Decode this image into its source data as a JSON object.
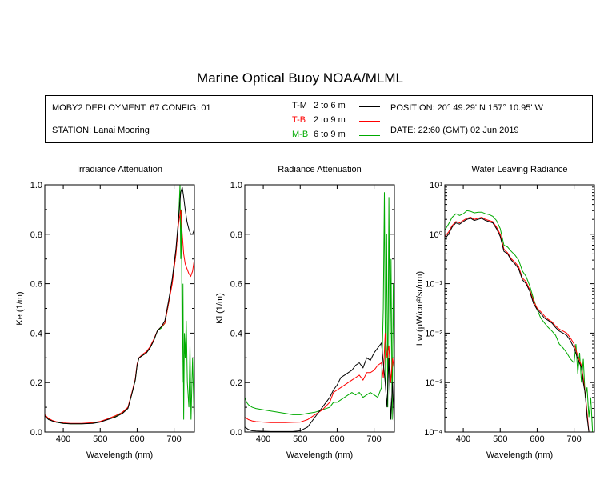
{
  "header": {
    "title": "Marine Optical Buoy NOAA/MLML",
    "deployment": "MOBY2 DEPLOYMENT: 67 CONFIG: 01",
    "station": "STATION: Lanai Mooring",
    "position": "POSITION: 20° 49.29' N   157° 10.95' W",
    "date": "DATE: 22:60 (GMT) 02 Jun 2019"
  },
  "legend": [
    {
      "name": "T-M",
      "range": "2 to 6  m",
      "color": "#000000"
    },
    {
      "name": "T-B",
      "range": "2 to 9  m",
      "color": "#ff0000"
    },
    {
      "name": "M-B",
      "range": "6 to 9  m",
      "color": "#00aa00"
    }
  ],
  "chart_data": [
    {
      "type": "line",
      "title": "Irradiance Attenuation",
      "xlabel": "Wavelength (nm)",
      "ylabel": "Ke  (1/m)",
      "xlim": [
        350,
        755
      ],
      "ylim": [
        0,
        1
      ],
      "xticks": [
        "400",
        "500",
        "600",
        "700"
      ],
      "yticks": [
        "0.0",
        "0.2",
        "0.4",
        "0.6",
        "0.8",
        "1.0"
      ],
      "series": [
        {
          "name": "T-M",
          "color": "#000000",
          "x": [
            350,
            360,
            370,
            380,
            400,
            420,
            450,
            480,
            500,
            520,
            540,
            560,
            575,
            585,
            595,
            600,
            605,
            615,
            625,
            635,
            645,
            655,
            665,
            675,
            685,
            695,
            705,
            712,
            718,
            722,
            726,
            730,
            735,
            740,
            745,
            750,
            755
          ],
          "y": [
            0.065,
            0.05,
            0.045,
            0.04,
            0.035,
            0.033,
            0.033,
            0.035,
            0.04,
            0.05,
            0.06,
            0.075,
            0.095,
            0.15,
            0.21,
            0.27,
            0.3,
            0.31,
            0.32,
            0.34,
            0.37,
            0.41,
            0.425,
            0.45,
            0.53,
            0.62,
            0.74,
            0.86,
            0.97,
            0.99,
            0.95,
            0.9,
            0.85,
            0.82,
            0.8,
            0.8,
            0.82
          ]
        },
        {
          "name": "T-B",
          "color": "#ff0000",
          "x": [
            350,
            360,
            370,
            380,
            400,
            420,
            450,
            480,
            500,
            520,
            540,
            560,
            575,
            585,
            595,
            600,
            605,
            615,
            625,
            635,
            645,
            655,
            665,
            675,
            685,
            695,
            705,
            712,
            718,
            722,
            726,
            730,
            735,
            740,
            745,
            750,
            755
          ],
          "y": [
            0.07,
            0.055,
            0.047,
            0.042,
            0.037,
            0.035,
            0.035,
            0.038,
            0.043,
            0.053,
            0.065,
            0.08,
            0.1,
            0.155,
            0.215,
            0.275,
            0.3,
            0.315,
            0.325,
            0.345,
            0.375,
            0.41,
            0.425,
            0.44,
            0.52,
            0.6,
            0.72,
            0.84,
            0.9,
            0.8,
            0.72,
            0.68,
            0.66,
            0.64,
            0.63,
            0.65,
            0.7
          ]
        },
        {
          "name": "M-B",
          "color": "#00aa00",
          "x": [
            350,
            355,
            360,
            365,
            370,
            380,
            400,
            420,
            450,
            480,
            500,
            520,
            540,
            560,
            575,
            585,
            595,
            600,
            605,
            615,
            625,
            635,
            645,
            655,
            665,
            675,
            685,
            695,
            705,
            712,
            716,
            718,
            720,
            722,
            724,
            726,
            728,
            730,
            733,
            736,
            740,
            743,
            746,
            750,
            755
          ],
          "y": [
            0.07,
            0.06,
            0.052,
            0.05,
            0.045,
            0.04,
            0.035,
            0.033,
            0.033,
            0.036,
            0.041,
            0.052,
            0.063,
            0.078,
            0.098,
            0.15,
            0.21,
            0.27,
            0.3,
            0.31,
            0.32,
            0.34,
            0.37,
            0.41,
            0.42,
            0.44,
            0.52,
            0.61,
            0.72,
            0.85,
            1.0,
            0.7,
            0.9,
            0.2,
            0.6,
            0.05,
            0.4,
            0.3,
            0.45,
            0.2,
            0.1,
            0.35,
            0.05,
            0.3,
            0.0
          ]
        }
      ]
    },
    {
      "type": "line",
      "title": "Radiance Attenuation",
      "xlabel": "Wavelength (nm)",
      "ylabel": "Kl  (1/m)",
      "xlim": [
        350,
        755
      ],
      "ylim": [
        0,
        1
      ],
      "xticks": [
        "400",
        "500",
        "600",
        "700"
      ],
      "yticks": [
        "0.0",
        "0.2",
        "0.4",
        "0.6",
        "0.8",
        "1.0"
      ],
      "series": [
        {
          "name": "T-M",
          "color": "#000000",
          "x": [
            350,
            360,
            370,
            380,
            400,
            420,
            440,
            460,
            480,
            500,
            520,
            540,
            560,
            580,
            590,
            600,
            610,
            620,
            630,
            640,
            650,
            660,
            670,
            680,
            690,
            700,
            710,
            720,
            725,
            730,
            735,
            740,
            745,
            750,
            755
          ],
          "y": [
            0.02,
            0.01,
            0.005,
            0.004,
            0.003,
            0.002,
            0.002,
            0.002,
            0.002,
            0.005,
            0.02,
            0.06,
            0.1,
            0.14,
            0.17,
            0.19,
            0.22,
            0.23,
            0.24,
            0.25,
            0.27,
            0.28,
            0.26,
            0.3,
            0.29,
            0.32,
            0.34,
            0.36,
            0.28,
            0.2,
            0.1,
            0.3,
            0.05,
            0.2,
            0.0
          ]
        },
        {
          "name": "T-B",
          "color": "#ff0000",
          "x": [
            350,
            360,
            370,
            380,
            400,
            420,
            440,
            460,
            480,
            500,
            520,
            540,
            560,
            580,
            590,
            600,
            610,
            620,
            630,
            640,
            650,
            660,
            670,
            680,
            690,
            700,
            710,
            720,
            725,
            730,
            735,
            740,
            745,
            750,
            755
          ],
          "y": [
            0.06,
            0.05,
            0.045,
            0.042,
            0.04,
            0.038,
            0.038,
            0.038,
            0.039,
            0.04,
            0.05,
            0.07,
            0.09,
            0.12,
            0.16,
            0.17,
            0.18,
            0.19,
            0.2,
            0.21,
            0.22,
            0.23,
            0.21,
            0.24,
            0.24,
            0.25,
            0.27,
            0.28,
            0.22,
            0.4,
            0.3,
            0.35,
            0.2,
            0.3,
            0.25
          ]
        },
        {
          "name": "M-B",
          "color": "#00aa00",
          "x": [
            350,
            355,
            360,
            370,
            380,
            400,
            420,
            440,
            460,
            480,
            500,
            520,
            540,
            560,
            580,
            590,
            600,
            610,
            620,
            630,
            640,
            650,
            660,
            670,
            680,
            690,
            700,
            710,
            720,
            725,
            728,
            731,
            734,
            737,
            740,
            743,
            746,
            749,
            752,
            755
          ],
          "y": [
            0.14,
            0.12,
            0.11,
            0.1,
            0.095,
            0.09,
            0.085,
            0.08,
            0.075,
            0.07,
            0.07,
            0.075,
            0.08,
            0.09,
            0.1,
            0.12,
            0.12,
            0.13,
            0.14,
            0.15,
            0.16,
            0.15,
            0.16,
            0.14,
            0.15,
            0.16,
            0.15,
            0.14,
            0.18,
            0.5,
            0.97,
            0.2,
            0.8,
            0.1,
            0.95,
            0.3,
            0.7,
            0.05,
            0.6,
            0.2
          ]
        }
      ]
    },
    {
      "type": "line",
      "title": "Water Leaving Radiance",
      "xlabel": "Wavelength (nm)",
      "ylabel": "Lw  (μW/cm²/sr/nm)",
      "yscale": "log",
      "xlim": [
        350,
        755
      ],
      "ylim": [
        0.0001,
        10
      ],
      "xticks": [
        "400",
        "500",
        "600",
        "700"
      ],
      "yticks": [
        "10⁻⁴",
        "10⁻³",
        "10⁻²",
        "10⁻¹",
        "10⁰",
        "10¹"
      ],
      "series": [
        {
          "name": "T-M",
          "color": "#000000",
          "x": [
            350,
            360,
            370,
            380,
            390,
            400,
            410,
            420,
            430,
            440,
            450,
            460,
            470,
            480,
            490,
            500,
            510,
            520,
            530,
            540,
            550,
            560,
            570,
            580,
            590,
            600,
            610,
            620,
            630,
            640,
            650,
            660,
            670,
            680,
            690,
            700,
            710,
            720,
            725,
            730,
            735,
            740
          ],
          "y": [
            0.8,
            1.0,
            1.4,
            1.7,
            1.6,
            1.8,
            2.0,
            2.1,
            1.9,
            2.0,
            2.1,
            1.9,
            1.8,
            1.7,
            1.3,
            0.9,
            0.45,
            0.4,
            0.3,
            0.25,
            0.2,
            0.12,
            0.1,
            0.07,
            0.04,
            0.03,
            0.025,
            0.02,
            0.018,
            0.016,
            0.013,
            0.011,
            0.01,
            0.009,
            0.007,
            0.005,
            0.003,
            0.002,
            0.001,
            0.0006,
            0.0002,
            0.0001
          ]
        },
        {
          "name": "T-B",
          "color": "#ff0000",
          "x": [
            350,
            360,
            370,
            380,
            390,
            400,
            410,
            420,
            430,
            440,
            450,
            460,
            470,
            480,
            490,
            500,
            510,
            520,
            530,
            540,
            550,
            560,
            570,
            580,
            590,
            600,
            610,
            620,
            630,
            640,
            650,
            660,
            670,
            680,
            690,
            700,
            710,
            720,
            725,
            730,
            735,
            740
          ],
          "y": [
            0.9,
            1.1,
            1.5,
            1.8,
            1.7,
            1.9,
            2.1,
            2.2,
            2.0,
            2.1,
            2.2,
            2.0,
            1.9,
            1.8,
            1.4,
            1.0,
            0.5,
            0.42,
            0.32,
            0.27,
            0.22,
            0.13,
            0.11,
            0.075,
            0.045,
            0.032,
            0.027,
            0.022,
            0.019,
            0.017,
            0.014,
            0.012,
            0.011,
            0.01,
            0.008,
            0.006,
            0.0035,
            0.0022,
            0.0012,
            0.0006,
            0.00025,
            0.0001
          ]
        },
        {
          "name": "M-B",
          "color": "#00aa00",
          "x": [
            350,
            360,
            370,
            380,
            390,
            400,
            410,
            420,
            430,
            440,
            450,
            460,
            470,
            480,
            490,
            500,
            510,
            520,
            530,
            540,
            550,
            560,
            570,
            580,
            590,
            600,
            610,
            620,
            630,
            640,
            650,
            660,
            670,
            680,
            690,
            700,
            705,
            710,
            715,
            720,
            725,
            730,
            735,
            740,
            745,
            750
          ],
          "y": [
            1.2,
            1.6,
            2.2,
            2.6,
            2.4,
            2.6,
            3.0,
            2.9,
            2.7,
            2.8,
            2.8,
            2.6,
            2.5,
            2.3,
            1.9,
            1.3,
            0.6,
            0.55,
            0.45,
            0.38,
            0.3,
            0.18,
            0.14,
            0.09,
            0.05,
            0.03,
            0.02,
            0.016,
            0.013,
            0.011,
            0.009,
            0.006,
            0.005,
            0.004,
            0.003,
            0.0025,
            0.006,
            0.0015,
            0.004,
            0.001,
            0.003,
            0.0005,
            0.0008,
            0.0002,
            0.0005,
            0.0001
          ]
        }
      ]
    }
  ]
}
